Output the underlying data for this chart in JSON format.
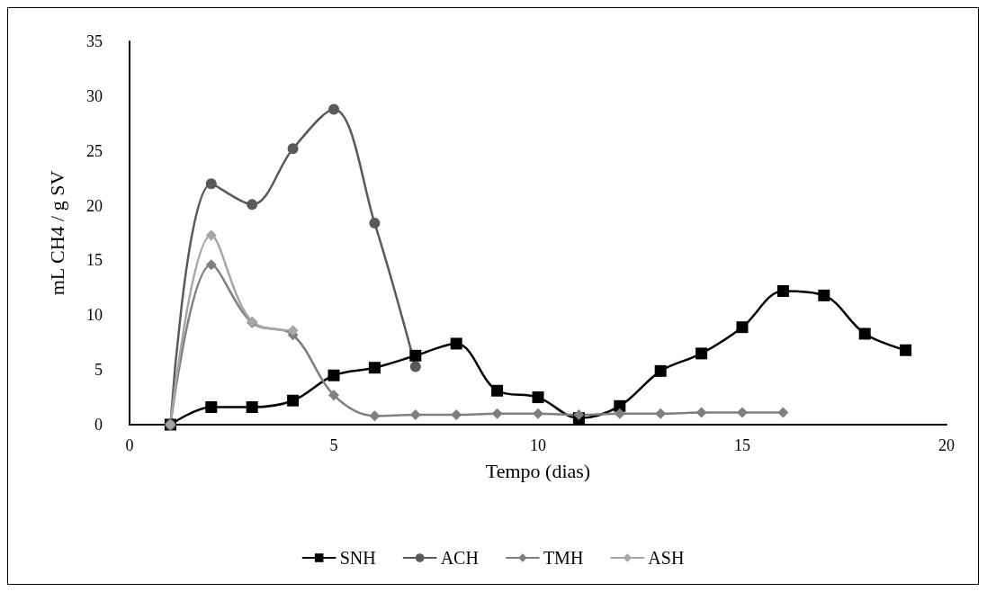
{
  "chart_data": {
    "type": "line",
    "xlabel": "Tempo (dias)",
    "ylabel": "mL CH4 / g SV",
    "x": [
      1,
      2,
      3,
      4,
      5,
      6,
      7,
      8,
      9,
      10,
      11,
      12,
      13,
      14,
      15,
      16,
      17,
      18,
      19
    ],
    "series": [
      {
        "name": "SNH",
        "color": "#000000",
        "marker": "square",
        "values": [
          0,
          1.6,
          1.6,
          2.2,
          4.5,
          5.2,
          6.3,
          7.4,
          3.1,
          2.5,
          0.6,
          1.7,
          4.9,
          6.5,
          8.9,
          12.2,
          11.8,
          8.3,
          6.8
        ]
      },
      {
        "name": "ACH",
        "color": "#595959",
        "marker": "circle",
        "values": [
          0,
          22,
          20.1,
          25.2,
          28.8,
          18.4,
          5.3,
          null,
          null,
          null,
          null,
          null,
          null,
          null,
          null,
          null,
          null,
          null,
          null
        ]
      },
      {
        "name": "TMH",
        "color": "#7f7f7f",
        "marker": "diamond",
        "values": [
          0,
          14.6,
          9.3,
          8.2,
          2.7,
          0.8,
          0.9,
          0.9,
          1.0,
          1.0,
          0.9,
          1.0,
          1.0,
          1.1,
          1.1,
          1.1,
          null,
          null,
          null
        ]
      },
      {
        "name": "ASH",
        "color": "#a6a6a6",
        "marker": "diamond",
        "values": [
          0,
          17.3,
          9.4,
          8.6,
          null,
          null,
          null,
          null,
          null,
          null,
          null,
          null,
          null,
          null,
          null,
          null,
          null,
          null,
          null
        ]
      }
    ],
    "xlim": [
      0,
      20
    ],
    "xticks": [
      0,
      5,
      10,
      15,
      20
    ],
    "ylim": [
      0,
      35
    ],
    "yticks": [
      0,
      5,
      10,
      15,
      20,
      25,
      30,
      35
    ],
    "grid": false,
    "legend": "bottom",
    "line_style": "solid"
  }
}
